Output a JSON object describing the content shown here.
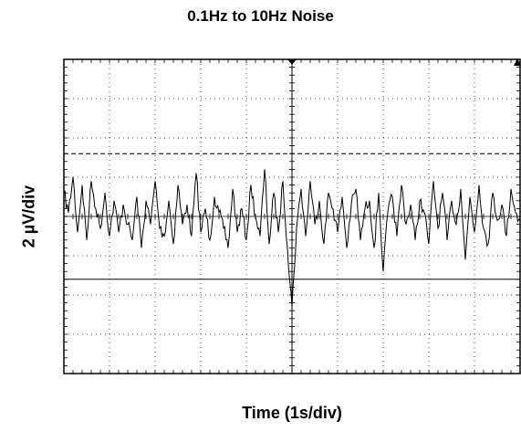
{
  "chart_data": {
    "type": "line",
    "title": "0.1Hz to 10Hz Noise",
    "xlabel": "Time (1s/div)",
    "ylabel": "2 µV/div",
    "grid": true,
    "x_divisions": 10,
    "y_divisions": 8,
    "xlim": [
      0,
      10
    ],
    "ylim": [
      -4,
      4
    ],
    "series": [
      {
        "x": [
          0.0,
          0.1,
          0.2,
          0.3,
          0.4,
          0.5,
          0.6,
          0.7,
          0.8,
          0.9,
          1.0,
          1.1,
          1.2,
          1.3,
          1.4,
          1.5,
          1.6,
          1.7,
          1.8,
          1.9,
          2.0,
          2.1,
          2.2,
          2.3,
          2.4,
          2.5,
          2.6,
          2.7,
          2.8,
          2.9,
          3.0,
          3.1,
          3.2,
          3.3,
          3.4,
          3.5,
          3.6,
          3.7,
          3.8,
          3.9,
          4.0,
          4.1,
          4.2,
          4.3,
          4.4,
          4.5,
          4.6,
          4.7,
          4.8,
          4.9,
          5.0,
          5.1,
          5.2,
          5.3,
          5.4,
          5.5,
          5.6,
          5.7,
          5.8,
          5.9,
          6.0,
          6.1,
          6.2,
          6.3,
          6.4,
          6.5,
          6.6,
          6.7,
          6.8,
          6.9,
          7.0,
          7.1,
          7.2,
          7.3,
          7.4,
          7.5,
          7.6,
          7.7,
          7.8,
          7.9,
          8.0,
          8.1,
          8.2,
          8.3,
          8.4,
          8.5,
          8.6,
          8.7,
          8.8,
          8.9,
          9.0,
          9.1,
          9.2,
          9.3,
          9.4,
          9.5,
          9.6,
          9.7,
          9.8,
          9.9,
          10.0
        ],
        "values": [
          0.6,
          0.1,
          1.0,
          -0.4,
          0.8,
          -0.6,
          0.9,
          0.2,
          -0.3,
          0.6,
          -0.5,
          0.4,
          -0.4,
          0.3,
          -0.2,
          -0.6,
          0.5,
          -0.8,
          0.4,
          -0.2,
          0.9,
          -0.3,
          -0.5,
          0.4,
          -0.7,
          0.8,
          -0.2,
          0.3,
          -0.5,
          1.1,
          -0.4,
          0.2,
          -0.6,
          0.5,
          0.1,
          -0.3,
          -0.8,
          0.7,
          -0.4,
          0.2,
          -0.6,
          0.8,
          0.0,
          -0.5,
          1.2,
          -0.7,
          0.6,
          -0.4,
          0.9,
          -0.8,
          -2.3,
          -0.3,
          0.7,
          -0.5,
          0.9,
          -0.2,
          0.4,
          -0.7,
          0.6,
          0.2,
          -0.4,
          0.5,
          -0.8,
          0.3,
          0.7,
          -0.6,
          0.2,
          0.4,
          -0.8,
          0.6,
          -1.4,
          0.1,
          0.5,
          -0.5,
          0.8,
          -0.2,
          0.3,
          -0.6,
          0.4,
          0.1,
          -0.7,
          0.9,
          -0.3,
          0.6,
          -0.6,
          0.4,
          -0.2,
          0.7,
          -1.1,
          0.5,
          -0.4,
          0.8,
          -0.3,
          -0.7,
          0.6,
          -0.1,
          0.3,
          -0.5,
          0.7,
          0.1,
          -0.1
        ]
      }
    ],
    "reference_lines_y": [
      1.6,
      -1.6
    ]
  }
}
